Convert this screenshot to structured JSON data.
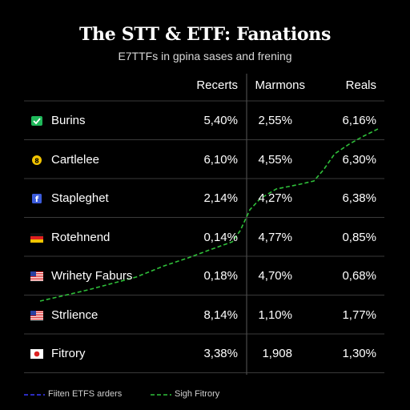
{
  "chart_data": {
    "type": "table",
    "title": "The STT & ETF: Fanations",
    "subtitle": "E7TTFs in gpina sases and frening",
    "columns": [
      "Recerts",
      "Marmons",
      "Reals"
    ],
    "rows": [
      {
        "label": "Burins",
        "icon": "green-check-badge-icon",
        "values": [
          "5,40%",
          "2,55%",
          "6,16%"
        ]
      },
      {
        "label": "Cartlelee",
        "icon": "yellow-coin-icon",
        "values": [
          "6,10%",
          "4,55%",
          "6,30%"
        ]
      },
      {
        "label": "Stapleghet",
        "icon": "blue-f-logo-icon",
        "values": [
          "2,14%",
          "4,27%",
          "6,38%"
        ]
      },
      {
        "label": "Rotehnend",
        "icon": "germany-flag-icon",
        "values": [
          "0,14%",
          "4,77%",
          "0,85%"
        ]
      },
      {
        "label": "Wrihety Faburs",
        "icon": "us-flag-icon",
        "values": [
          "0,18%",
          "4,70%",
          "0,68%"
        ]
      },
      {
        "label": "Strlience",
        "icon": "us-flag-icon",
        "values": [
          "8,14%",
          "1,10%",
          "1,77%"
        ]
      },
      {
        "label": "Fitrory",
        "icon": "japan-flag-icon",
        "values": [
          "3,38%",
          "1,908",
          "1,30%"
        ]
      }
    ],
    "legend": [
      {
        "label": "Fiiten ETFS arders",
        "color": "#3a3aff",
        "style": "dashed"
      },
      {
        "label": "Sigh Fitrory",
        "color": "#2fbf3a",
        "style": "dashed"
      }
    ],
    "colors": {
      "background": "#000000",
      "text": "#ffffff",
      "grid": "#3a3a3a",
      "overlay_line": "#2fbf3a"
    }
  }
}
